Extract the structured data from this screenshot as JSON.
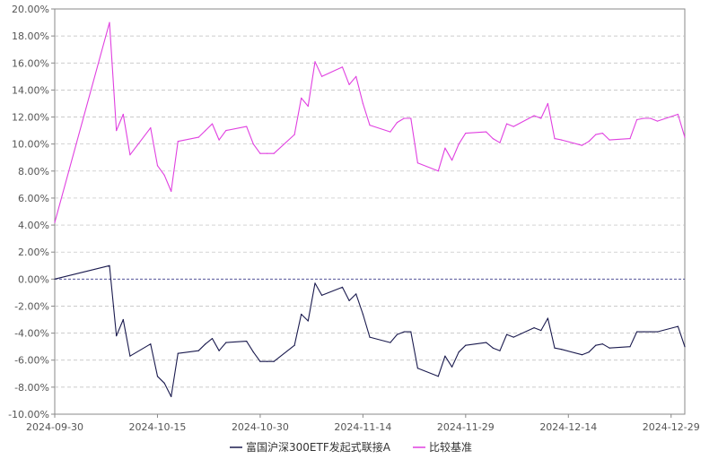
{
  "chart_data": {
    "type": "line",
    "title": "",
    "xlabel": "",
    "ylabel": "",
    "ylim": [
      -10,
      20
    ],
    "y_ticks": [
      "20.00%",
      "18.00%",
      "16.00%",
      "14.00%",
      "12.00%",
      "10.00%",
      "8.00%",
      "6.00%",
      "4.00%",
      "2.00%",
      "0.00%",
      "-2.00%",
      "-4.00%",
      "-6.00%",
      "-8.00%",
      "-10.00%"
    ],
    "x_ticks": [
      "2024-09-30",
      "2024-10-15",
      "2024-10-30",
      "2024-11-14",
      "2024-11-29",
      "2024-12-14",
      "2024-12-29"
    ],
    "x_range": [
      "2024-09-30",
      "2024-12-31"
    ],
    "grid": "horizontal dashed",
    "zero_line": "dashed",
    "legend_position": "bottom-center",
    "colors": {
      "series1": "#1a1a4e",
      "series2": "#e040e0",
      "grid": "#bbbbbb",
      "axis": "#888888"
    },
    "series": [
      {
        "name": "富国沪深300ETF发起式联接A",
        "color": "#1a1a4e",
        "x": [
          "2024-09-30",
          "2024-10-08",
          "2024-10-09",
          "2024-10-10",
          "2024-10-11",
          "2024-10-14",
          "2024-10-15",
          "2024-10-16",
          "2024-10-17",
          "2024-10-18",
          "2024-10-21",
          "2024-10-22",
          "2024-10-23",
          "2024-10-24",
          "2024-10-25",
          "2024-10-28",
          "2024-10-29",
          "2024-10-30",
          "2024-10-31",
          "2024-11-01",
          "2024-11-04",
          "2024-11-05",
          "2024-11-06",
          "2024-11-07",
          "2024-11-08",
          "2024-11-11",
          "2024-11-12",
          "2024-11-13",
          "2024-11-14",
          "2024-11-15",
          "2024-11-18",
          "2024-11-19",
          "2024-11-20",
          "2024-11-21",
          "2024-11-22",
          "2024-11-25",
          "2024-11-26",
          "2024-11-27",
          "2024-11-28",
          "2024-11-29",
          "2024-12-02",
          "2024-12-03",
          "2024-12-04",
          "2024-12-05",
          "2024-12-06",
          "2024-12-09",
          "2024-12-10",
          "2024-12-11",
          "2024-12-12",
          "2024-12-13",
          "2024-12-16",
          "2024-12-17",
          "2024-12-18",
          "2024-12-19",
          "2024-12-20",
          "2024-12-23",
          "2024-12-24",
          "2024-12-25",
          "2024-12-26",
          "2024-12-27",
          "2024-12-30",
          "2024-12-31"
        ],
        "values": [
          0.0,
          1.0,
          -4.2,
          -3.0,
          -5.7,
          -4.8,
          -7.2,
          -7.7,
          -8.7,
          -5.5,
          -5.3,
          -4.8,
          -4.4,
          -5.3,
          -4.7,
          -4.6,
          -5.4,
          -6.1,
          -6.1,
          -6.1,
          -4.9,
          -2.6,
          -3.1,
          -0.3,
          -1.2,
          -0.6,
          -1.6,
          -1.1,
          -2.6,
          -4.3,
          -4.7,
          -4.1,
          -3.9,
          -3.9,
          -6.6,
          -7.2,
          -5.7,
          -6.5,
          -5.4,
          -4.9,
          -4.7,
          -5.1,
          -5.3,
          -4.1,
          -4.3,
          -3.6,
          -3.8,
          -2.9,
          -5.1,
          -5.2,
          -5.6,
          -5.4,
          -4.9,
          -4.8,
          -5.1,
          -5.0,
          -3.9,
          -3.9,
          -3.9,
          -3.9,
          -3.5,
          -5.0
        ]
      },
      {
        "name": "比较基准",
        "color": "#e040e0",
        "x": [
          "2024-09-30",
          "2024-10-08",
          "2024-10-09",
          "2024-10-10",
          "2024-10-11",
          "2024-10-14",
          "2024-10-15",
          "2024-10-16",
          "2024-10-17",
          "2024-10-18",
          "2024-10-21",
          "2024-10-22",
          "2024-10-23",
          "2024-10-24",
          "2024-10-25",
          "2024-10-28",
          "2024-10-29",
          "2024-10-30",
          "2024-10-31",
          "2024-11-01",
          "2024-11-04",
          "2024-11-05",
          "2024-11-06",
          "2024-11-07",
          "2024-11-08",
          "2024-11-11",
          "2024-11-12",
          "2024-11-13",
          "2024-11-14",
          "2024-11-15",
          "2024-11-18",
          "2024-11-19",
          "2024-11-20",
          "2024-11-21",
          "2024-11-22",
          "2024-11-25",
          "2024-11-26",
          "2024-11-27",
          "2024-11-28",
          "2024-11-29",
          "2024-12-02",
          "2024-12-03",
          "2024-12-04",
          "2024-12-05",
          "2024-12-06",
          "2024-12-09",
          "2024-12-10",
          "2024-12-11",
          "2024-12-12",
          "2024-12-13",
          "2024-12-16",
          "2024-12-17",
          "2024-12-18",
          "2024-12-19",
          "2024-12-20",
          "2024-12-23",
          "2024-12-24",
          "2024-12-25",
          "2024-12-26",
          "2024-12-27",
          "2024-12-30",
          "2024-12-31"
        ],
        "values": [
          4.2,
          19.0,
          11.0,
          12.2,
          9.2,
          11.2,
          8.4,
          7.7,
          6.5,
          10.2,
          10.5,
          11.0,
          11.5,
          10.3,
          11.0,
          11.3,
          10.0,
          9.3,
          9.3,
          9.3,
          10.7,
          13.4,
          12.8,
          16.1,
          15.0,
          15.7,
          14.4,
          15.0,
          13.0,
          11.4,
          10.9,
          11.6,
          11.9,
          11.9,
          8.6,
          8.0,
          9.7,
          8.8,
          10.0,
          10.8,
          10.9,
          10.4,
          10.1,
          11.5,
          11.3,
          12.1,
          11.9,
          13.0,
          10.4,
          10.3,
          9.9,
          10.2,
          10.7,
          10.8,
          10.3,
          10.4,
          11.8,
          11.9,
          11.9,
          11.7,
          12.2,
          10.5
        ]
      }
    ]
  }
}
